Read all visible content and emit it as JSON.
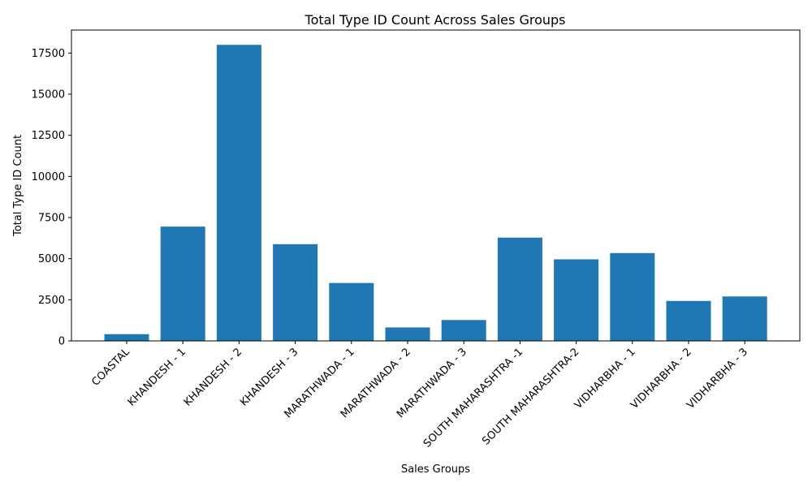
{
  "chart_data": {
    "type": "bar",
    "title": "Total Type ID Count Across Sales Groups",
    "xlabel": "Sales Groups",
    "ylabel": "Total Type ID Count",
    "categories": [
      "COASTAL",
      "KHANDESH - 1",
      "KHANDESH - 2",
      "KHANDESH - 3",
      "MARATHWADA - 1",
      "MARATHWADA - 2",
      "MARATHWADA - 3",
      "SOUTH MAHARASHTRA -1",
      "SOUTH MAHARASHTRA-2",
      "VIDHARBHA - 1",
      "VIDHARBHA - 2",
      "VIDHARBHA - 3"
    ],
    "values": [
      410,
      6950,
      18000,
      5880,
      3520,
      820,
      1270,
      6280,
      4960,
      5340,
      2430,
      2700
    ],
    "ylim": [
      0,
      18900
    ],
    "yticks": [
      0,
      2500,
      5000,
      7500,
      10000,
      12500,
      15000,
      17500
    ],
    "ytick_labels": [
      "0",
      "2500",
      "5000",
      "7500",
      "10000",
      "12500",
      "15000",
      "17500"
    ],
    "bar_color": "#1f77b4",
    "grid": false,
    "legend": "none"
  }
}
